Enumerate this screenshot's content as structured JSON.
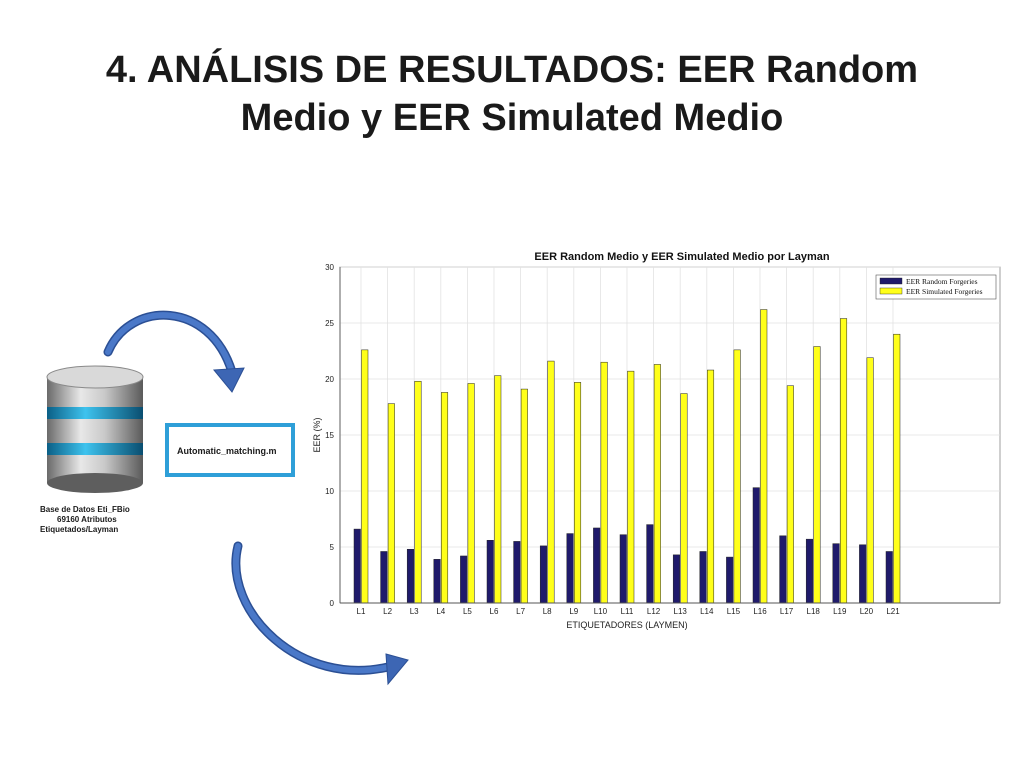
{
  "slide": {
    "title_line1": "4. ANÁLISIS DE RESULTADOS: EER Random",
    "title_line2": "Medio y EER Simulated Medio"
  },
  "diagram": {
    "database_label_line1": "Base de Datos Eti_FBio",
    "database_label_line2": "69160 Atributos",
    "database_label_line3": "Etiquetados/Layman",
    "script_box_label": "Automatic_matching.m"
  },
  "colors": {
    "random": "#1f1a6b",
    "simulated": "#ffff1a",
    "arrow": "#3d66b4",
    "box_border": "#2e9fd8"
  },
  "chart_data": {
    "type": "bar",
    "title": "EER Random Medio y EER Simulated Medio por Layman",
    "xlabel": "ETIQUETADORES (LAYMEN)",
    "ylabel": "EER (%)",
    "ylim": [
      0,
      30
    ],
    "yticks": [
      0,
      5,
      10,
      15,
      20,
      25,
      30
    ],
    "grid": true,
    "legend_position": "top-right",
    "categories": [
      "L1",
      "L2",
      "L3",
      "L4",
      "L5",
      "L6",
      "L7",
      "L8",
      "L9",
      "L10",
      "L11",
      "L12",
      "L13",
      "L14",
      "L15",
      "L16",
      "L17",
      "L18",
      "L19",
      "L20",
      "L21"
    ],
    "series": [
      {
        "name": "EER Random Forgeries",
        "color": "#1f1a6b",
        "values": [
          6.6,
          4.6,
          4.8,
          3.9,
          4.2,
          5.6,
          5.5,
          5.1,
          6.2,
          6.7,
          6.1,
          7.0,
          4.3,
          4.6,
          4.1,
          10.3,
          6.0,
          5.7,
          5.3,
          5.2,
          4.6
        ]
      },
      {
        "name": "EER Simulated Forgeries",
        "color": "#ffff1a",
        "values": [
          22.6,
          17.8,
          19.8,
          18.8,
          19.6,
          20.3,
          19.1,
          21.6,
          19.7,
          21.5,
          20.7,
          21.3,
          18.7,
          20.8,
          22.6,
          26.2,
          19.4,
          22.9,
          25.4,
          21.9,
          24.0
        ]
      }
    ]
  }
}
